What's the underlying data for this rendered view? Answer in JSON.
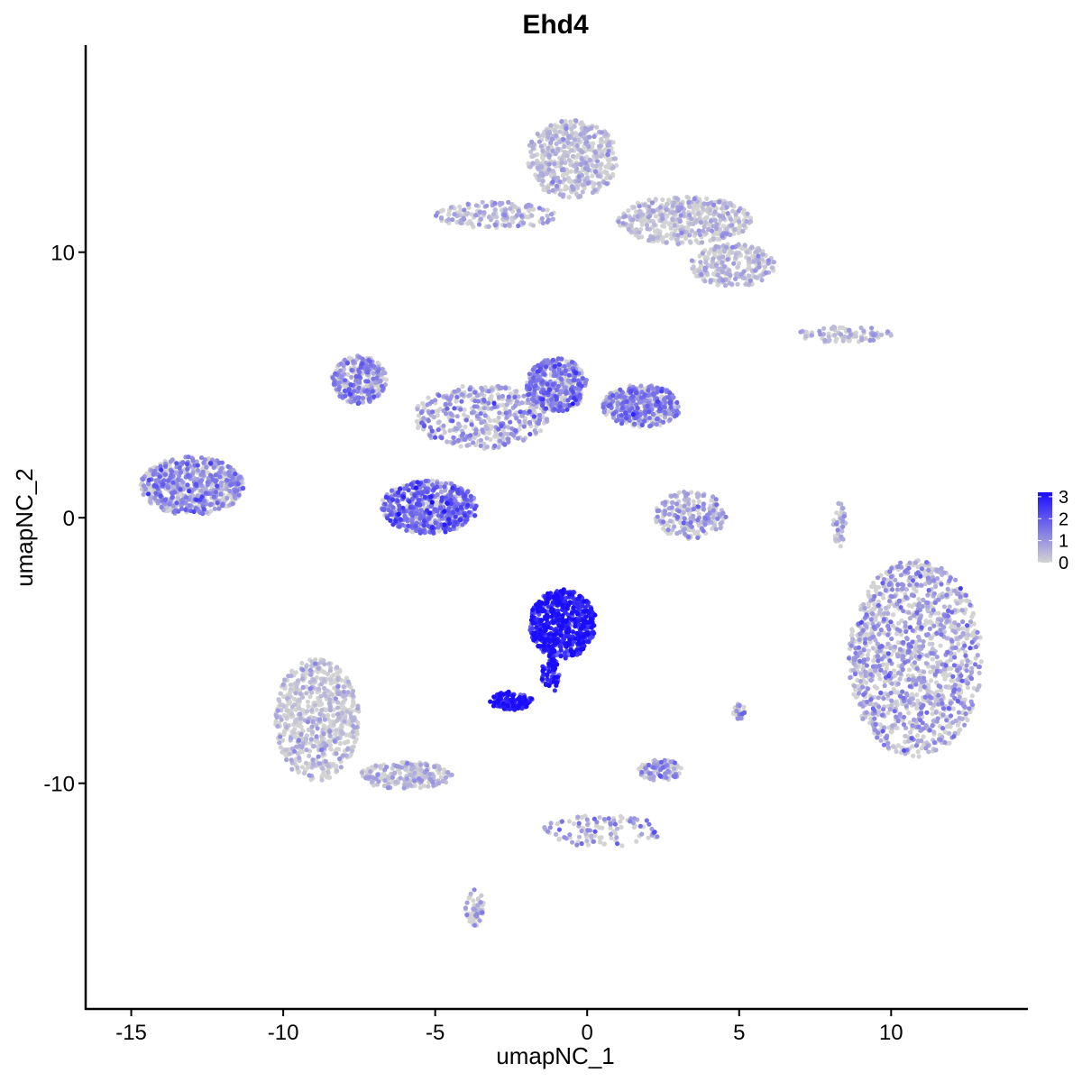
{
  "chart_data": {
    "type": "scatter",
    "title": "Ehd4",
    "xlabel": "umapNC_1",
    "ylabel": "umapNC_2",
    "xlim": [
      -16.5,
      14.5
    ],
    "ylim": [
      -18.5,
      17.8
    ],
    "x_ticks": [
      -15,
      -10,
      -5,
      0,
      5,
      10
    ],
    "x_tick_labels": [
      "-15",
      "-10",
      "-5",
      "0",
      "5",
      "10"
    ],
    "y_ticks": [
      -10,
      0,
      10
    ],
    "y_tick_labels": [
      "-10",
      "0",
      "10"
    ],
    "grid": false,
    "color_scale": {
      "low": "#d3d3d3",
      "high": "#1a0dff",
      "range": [
        0,
        3.2
      ],
      "breaks": [
        0,
        1,
        2,
        3
      ],
      "break_labels": [
        "0",
        "1",
        "2",
        "3"
      ],
      "legend_position": "right"
    },
    "clusters": [
      {
        "cx": -13.0,
        "cy": 1.2,
        "rx": 1.7,
        "ry": 1.1,
        "n": 650,
        "mean_expr": 1.0
      },
      {
        "cx": -7.5,
        "cy": 5.2,
        "rx": 0.9,
        "ry": 0.9,
        "n": 300,
        "mean_expr": 1.1
      },
      {
        "cx": -5.2,
        "cy": 0.4,
        "rx": 1.6,
        "ry": 1.0,
        "n": 600,
        "mean_expr": 1.6
      },
      {
        "cx": -3.5,
        "cy": 3.8,
        "rx": 2.2,
        "ry": 1.2,
        "n": 420,
        "mean_expr": 0.8
      },
      {
        "cx": -1.0,
        "cy": 5.0,
        "rx": 1.0,
        "ry": 1.0,
        "n": 420,
        "mean_expr": 1.3
      },
      {
        "cx": 1.8,
        "cy": 4.2,
        "rx": 1.3,
        "ry": 0.8,
        "n": 420,
        "mean_expr": 1.2
      },
      {
        "cx": -0.5,
        "cy": 13.5,
        "rx": 1.5,
        "ry": 1.5,
        "n": 520,
        "mean_expr": 0.3
      },
      {
        "cx": 3.2,
        "cy": 11.2,
        "rx": 2.2,
        "ry": 0.9,
        "n": 480,
        "mean_expr": 0.35
      },
      {
        "cx": 4.8,
        "cy": 9.5,
        "rx": 1.4,
        "ry": 0.8,
        "n": 260,
        "mean_expr": 0.4
      },
      {
        "cx": -3.0,
        "cy": 11.4,
        "rx": 2.0,
        "ry": 0.5,
        "n": 180,
        "mean_expr": 0.5
      },
      {
        "cx": 8.5,
        "cy": 6.9,
        "rx": 1.6,
        "ry": 0.3,
        "n": 90,
        "mean_expr": 0.4
      },
      {
        "cx": 3.4,
        "cy": 0.1,
        "rx": 1.2,
        "ry": 0.9,
        "n": 220,
        "mean_expr": 0.6
      },
      {
        "cx": 10.8,
        "cy": -5.3,
        "rx": 2.2,
        "ry": 3.7,
        "n": 1300,
        "mean_expr": 0.7
      },
      {
        "cx": -0.8,
        "cy": -4.0,
        "rx": 1.1,
        "ry": 1.3,
        "n": 520,
        "mean_expr": 2.8
      },
      {
        "cx": -2.5,
        "cy": -6.9,
        "rx": 0.7,
        "ry": 0.35,
        "n": 110,
        "mean_expr": 2.9
      },
      {
        "cx": -1.2,
        "cy": -5.9,
        "rx": 0.3,
        "ry": 0.7,
        "n": 60,
        "mean_expr": 2.8
      },
      {
        "cx": -8.9,
        "cy": -7.6,
        "rx": 1.4,
        "ry": 2.3,
        "n": 650,
        "mean_expr": 0.25
      },
      {
        "cx": -6.0,
        "cy": -9.7,
        "rx": 1.6,
        "ry": 0.5,
        "n": 220,
        "mean_expr": 0.4
      },
      {
        "cx": -3.7,
        "cy": -14.7,
        "rx": 0.3,
        "ry": 0.7,
        "n": 60,
        "mean_expr": 0.6
      },
      {
        "cx": 2.4,
        "cy": -9.5,
        "rx": 0.7,
        "ry": 0.4,
        "n": 90,
        "mean_expr": 0.8
      },
      {
        "cx": 0.5,
        "cy": -11.8,
        "rx": 2.0,
        "ry": 0.6,
        "n": 110,
        "mean_expr": 0.9
      },
      {
        "cx": 8.3,
        "cy": -0.3,
        "rx": 0.2,
        "ry": 0.9,
        "n": 45,
        "mean_expr": 0.5
      },
      {
        "cx": 5.0,
        "cy": -7.3,
        "rx": 0.2,
        "ry": 0.3,
        "n": 25,
        "mean_expr": 0.7
      }
    ]
  }
}
